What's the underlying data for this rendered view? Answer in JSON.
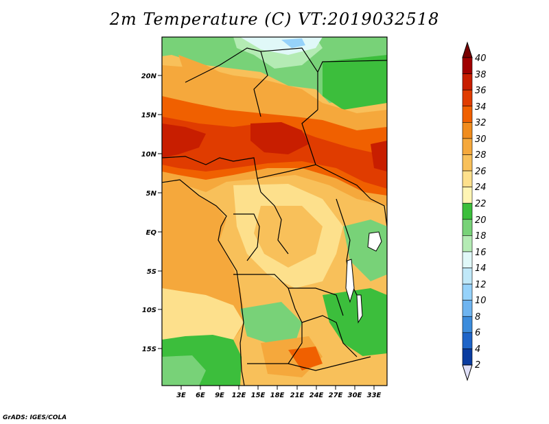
{
  "title": "2m Temperature (C) VT:2019032518",
  "credit": "GrADS: IGES/COLA",
  "map": {
    "lat_labels": [
      "20N",
      "15N",
      "10N",
      "5N",
      "EQ",
      "5S",
      "10S",
      "15S"
    ],
    "lon_labels": [
      "3E",
      "6E",
      "9E",
      "12E",
      "15E",
      "18E",
      "21E",
      "24E",
      "27E",
      "30E",
      "33E"
    ]
  },
  "colorbar": {
    "levels": [
      40,
      38,
      36,
      34,
      32,
      30,
      28,
      26,
      24,
      22,
      20,
      18,
      16,
      14,
      12,
      10,
      8,
      6,
      4,
      2
    ],
    "colors": [
      "#a00000",
      "#c81e00",
      "#e03c00",
      "#f06000",
      "#f08c1e",
      "#f5a83c",
      "#f8c05a",
      "#fde08c",
      "#fff5b4",
      "#3cbe3c",
      "#78d278",
      "#b4ebb4",
      "#e0f8f8",
      "#c0e8f8",
      "#96d2fa",
      "#6eb4f0",
      "#3c8cdc",
      "#1e64c8",
      "#0a3ca0",
      "#000050"
    ],
    "upper_arrow_color": "#780000",
    "lower_arrow_color": "#e0e0f8"
  }
}
